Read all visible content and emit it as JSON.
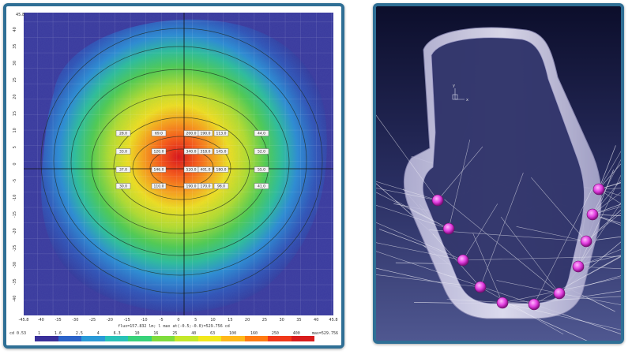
{
  "heatmap": {
    "x_ticks": [
      "-45.8",
      "-40",
      "-35",
      "-30",
      "-25",
      "-20",
      "-15",
      "-10",
      "-5",
      "0",
      "5",
      "10",
      "15",
      "20",
      "25",
      "30",
      "35",
      "40",
      "45.8"
    ],
    "y_ticks": [
      "40",
      "35",
      "30",
      "25",
      "20",
      "15",
      "10",
      "5",
      "0",
      "-5",
      "-10",
      "-15",
      "-20",
      "-25",
      "-30",
      "-35",
      "-40"
    ],
    "y_top_label": "45.8",
    "stats_text": "flux=157.832 lm; l max at(-0.5;-0.0)=529.756 cd",
    "scale_left": "cd",
    "scale_min_label": "cd 0.53",
    "scale_max_label": "max=529.756",
    "scale_values": [
      "1",
      "1.6",
      "2.5",
      "4",
      "6.3",
      "10",
      "16",
      "25",
      "40",
      "63",
      "100",
      "160",
      "250",
      "400"
    ],
    "colors": [
      "#3a2f9a",
      "#2c63c9",
      "#2a9ad8",
      "#29c2b8",
      "#38d27a",
      "#7fdc3c",
      "#c4e82a",
      "#f2e81c",
      "#ffb81a",
      "#ff7a12",
      "#f0381a",
      "#d81c1c"
    ],
    "point_labels": [
      "28.0",
      "69.0",
      "200.0",
      "190.0",
      "113.0",
      "44.0",
      "33.0",
      "120.0",
      "340.0",
      "318.0",
      "145.0",
      "52.0",
      "37.0",
      "146.0",
      "520.0",
      "401.0",
      "180.0",
      "55.0",
      "30.0",
      "110.0",
      "190.0",
      "170.0",
      "98.0",
      "41.0"
    ]
  },
  "scene3d": {
    "axis_y": "y",
    "axis_x": "x",
    "accent_led": "#e23ee0",
    "frame_color": "#cfcde6"
  }
}
